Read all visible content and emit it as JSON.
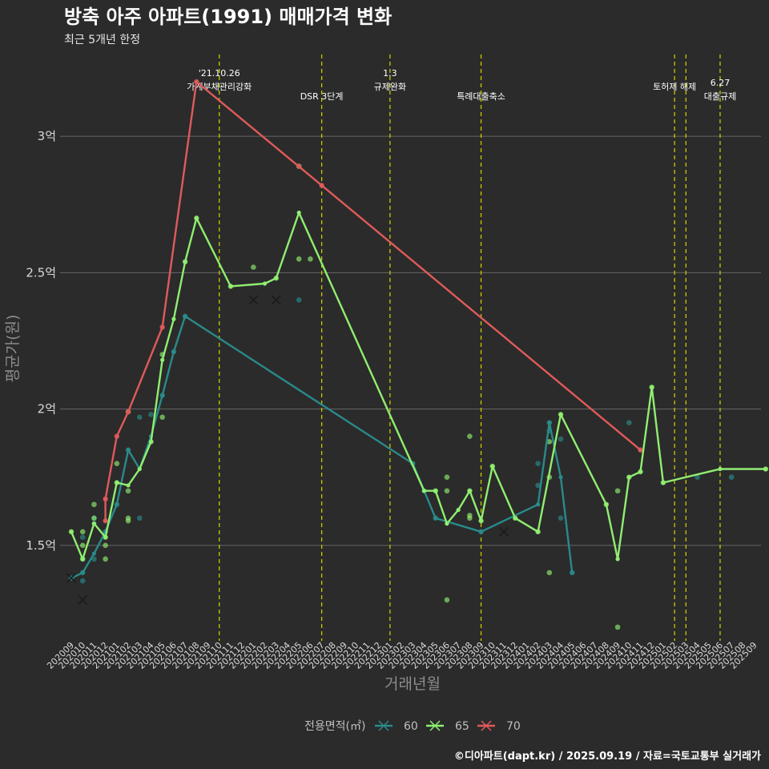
{
  "chart_data": {
    "type": "line",
    "title": "방축 아주 아파트(1991) 매매가격 변화",
    "subtitle": "최근 5개년 한정",
    "xlabel": "거래년월",
    "ylabel": "평균가(원)",
    "caption": "©디아파트(dapt.kr) / 2025.09.19 / 자료=국토교통부 실거래가",
    "y_range": [
      11500,
      33000
    ],
    "y_ticks": [
      {
        "value": 15000,
        "label": "1.5억"
      },
      {
        "value": 20000,
        "label": "2억"
      },
      {
        "value": 25000,
        "label": "2.5억"
      },
      {
        "value": 30000,
        "label": "3억"
      }
    ],
    "x_months": [
      "202009",
      "202010",
      "202011",
      "202012",
      "202101",
      "202102",
      "202103",
      "202104",
      "202105",
      "202106",
      "202107",
      "202108",
      "202109",
      "202110",
      "202111",
      "202112",
      "202201",
      "202202",
      "202203",
      "202204",
      "202205",
      "202206",
      "202207",
      "202208",
      "202209",
      "202210",
      "202211",
      "202212",
      "202301",
      "202302",
      "202303",
      "202304",
      "202305",
      "202306",
      "202307",
      "202308",
      "202309",
      "202310",
      "202311",
      "202312",
      "202401",
      "202402",
      "202403",
      "202404",
      "202405",
      "202406",
      "202407",
      "202408",
      "202409",
      "202410",
      "202411",
      "202412",
      "202501",
      "202502",
      "202503",
      "202504",
      "202505",
      "202506",
      "202507",
      "202508",
      "202509"
    ],
    "events": [
      {
        "x": 13,
        "lines": [
          "'21.10.26",
          "가계부채관리강화"
        ],
        "row": 0
      },
      {
        "x": 22,
        "lines": [
          "DSR 3단계"
        ],
        "row": 1
      },
      {
        "x": 28,
        "lines": [
          "1.3",
          "규제완화"
        ],
        "row": 0
      },
      {
        "x": 36,
        "lines": [
          "특례대출축소"
        ],
        "row": 1
      },
      {
        "x": 53,
        "lines": [
          "토허제 해제"
        ],
        "row": 0
      },
      {
        "x": 54,
        "lines": [],
        "row": 0
      },
      {
        "x": 57,
        "lines": [
          "6.27",
          "대출규제"
        ],
        "row": 1
      }
    ],
    "legend": {
      "title": "전용면적(㎡)",
      "position": "bottom"
    },
    "series": [
      {
        "name": "60",
        "color": "#2a8a8a",
        "line": [
          [
            0,
            13800
          ],
          [
            1,
            14000
          ],
          [
            2,
            14700
          ],
          [
            3,
            15500
          ],
          [
            4,
            16500
          ],
          [
            5,
            18500
          ],
          [
            6,
            17800
          ],
          [
            7,
            19000
          ],
          [
            8,
            20500
          ],
          [
            9,
            22100
          ],
          [
            10,
            23400
          ],
          [
            30,
            18000
          ],
          [
            31,
            17000
          ],
          [
            32,
            16000
          ],
          [
            36,
            15500
          ],
          [
            41,
            16500
          ],
          [
            42,
            19500
          ],
          [
            43,
            17500
          ],
          [
            44,
            14000
          ]
        ],
        "points": [
          [
            0,
            13800
          ],
          [
            1,
            14000
          ],
          [
            1,
            13700
          ],
          [
            1,
            14500
          ],
          [
            1,
            15300
          ],
          [
            2,
            14500
          ],
          [
            2,
            15800
          ],
          [
            2,
            16000
          ],
          [
            3,
            15500
          ],
          [
            4,
            16500
          ],
          [
            5,
            18500
          ],
          [
            6,
            19700
          ],
          [
            6,
            16000
          ],
          [
            7,
            19800
          ],
          [
            8,
            20500
          ],
          [
            9,
            22100
          ],
          [
            10,
            23400
          ],
          [
            20,
            24000
          ],
          [
            30,
            18000
          ],
          [
            31,
            17000
          ],
          [
            32,
            16000
          ],
          [
            36,
            15500
          ],
          [
            41,
            17200
          ],
          [
            41,
            18000
          ],
          [
            42,
            19500
          ],
          [
            42,
            19200
          ],
          [
            43,
            18900
          ],
          [
            43,
            16000
          ],
          [
            44,
            14000
          ],
          [
            49,
            19500
          ],
          [
            55,
            17500
          ],
          [
            58,
            17500
          ]
        ],
        "crosses": [
          [
            0,
            13800
          ],
          [
            1,
            13000
          ]
        ]
      },
      {
        "name": "65",
        "color": "#90ee70",
        "line": [
          [
            0,
            15500
          ],
          [
            1,
            14500
          ],
          [
            2,
            15800
          ],
          [
            3,
            15300
          ],
          [
            4,
            17300
          ],
          [
            5,
            17200
          ],
          [
            6,
            17800
          ],
          [
            7,
            18800
          ],
          [
            8,
            21800
          ],
          [
            9,
            23300
          ],
          [
            10,
            25400
          ],
          [
            11,
            27000
          ],
          [
            14,
            24500
          ],
          [
            17,
            24600
          ],
          [
            18,
            24800
          ],
          [
            20,
            27200
          ],
          [
            31,
            17000
          ],
          [
            32,
            17000
          ],
          [
            33,
            15800
          ],
          [
            34,
            16300
          ],
          [
            35,
            17000
          ],
          [
            36,
            15900
          ],
          [
            37,
            17900
          ],
          [
            39,
            16000
          ],
          [
            41,
            15500
          ],
          [
            43,
            19800
          ],
          [
            47,
            16500
          ],
          [
            48,
            14500
          ],
          [
            49,
            17500
          ],
          [
            50,
            17700
          ],
          [
            51,
            20800
          ],
          [
            52,
            17300
          ],
          [
            57,
            17800
          ],
          [
            61,
            17800
          ]
        ],
        "points": [
          [
            0,
            15500
          ],
          [
            1,
            14500
          ],
          [
            1,
            15000
          ],
          [
            1,
            15500
          ],
          [
            2,
            16500
          ],
          [
            2,
            16000
          ],
          [
            3,
            14500
          ],
          [
            3,
            15000
          ],
          [
            3,
            15300
          ],
          [
            4,
            18000
          ],
          [
            4,
            17300
          ],
          [
            5,
            16000
          ],
          [
            5,
            15900
          ],
          [
            5,
            17000
          ],
          [
            5,
            19900
          ],
          [
            7,
            18800
          ],
          [
            8,
            22000
          ],
          [
            8,
            19700
          ],
          [
            10,
            25400
          ],
          [
            11,
            27000
          ],
          [
            14,
            24500
          ],
          [
            16,
            25200
          ],
          [
            18,
            24800
          ],
          [
            20,
            28900
          ],
          [
            20,
            25500
          ],
          [
            21,
            25500
          ],
          [
            32,
            17000
          ],
          [
            33,
            17500
          ],
          [
            33,
            17000
          ],
          [
            33,
            13000
          ],
          [
            35,
            17000
          ],
          [
            35,
            16000
          ],
          [
            35,
            19000
          ],
          [
            35,
            16100
          ],
          [
            36,
            15900
          ],
          [
            37,
            17900
          ],
          [
            39,
            16000
          ],
          [
            41,
            15500
          ],
          [
            42,
            18800
          ],
          [
            42,
            17500
          ],
          [
            42,
            14000
          ],
          [
            43,
            19800
          ],
          [
            47,
            16500
          ],
          [
            48,
            17000
          ],
          [
            48,
            12000
          ],
          [
            49,
            17500
          ],
          [
            50,
            17700
          ],
          [
            51,
            20800
          ],
          [
            52,
            17300
          ],
          [
            61,
            17800
          ]
        ],
        "crosses": [
          [
            16,
            24000
          ],
          [
            18,
            24000
          ]
        ]
      },
      {
        "name": "70",
        "color": "#e05a5a",
        "line": [
          [
            3,
            15900
          ],
          [
            3,
            16700
          ],
          [
            4,
            19000
          ],
          [
            5,
            19900
          ],
          [
            8,
            23000
          ],
          [
            11,
            32000
          ],
          [
            22,
            28200
          ],
          [
            50,
            18500
          ]
        ],
        "points": [
          [
            3,
            15900
          ],
          [
            3,
            16700
          ],
          [
            4,
            19000
          ],
          [
            5,
            19900
          ],
          [
            8,
            23000
          ],
          [
            11,
            32000
          ],
          [
            20,
            28900
          ],
          [
            22,
            28200
          ],
          [
            50,
            18500
          ]
        ],
        "crosses": [
          [
            38,
            15500
          ]
        ]
      }
    ]
  }
}
